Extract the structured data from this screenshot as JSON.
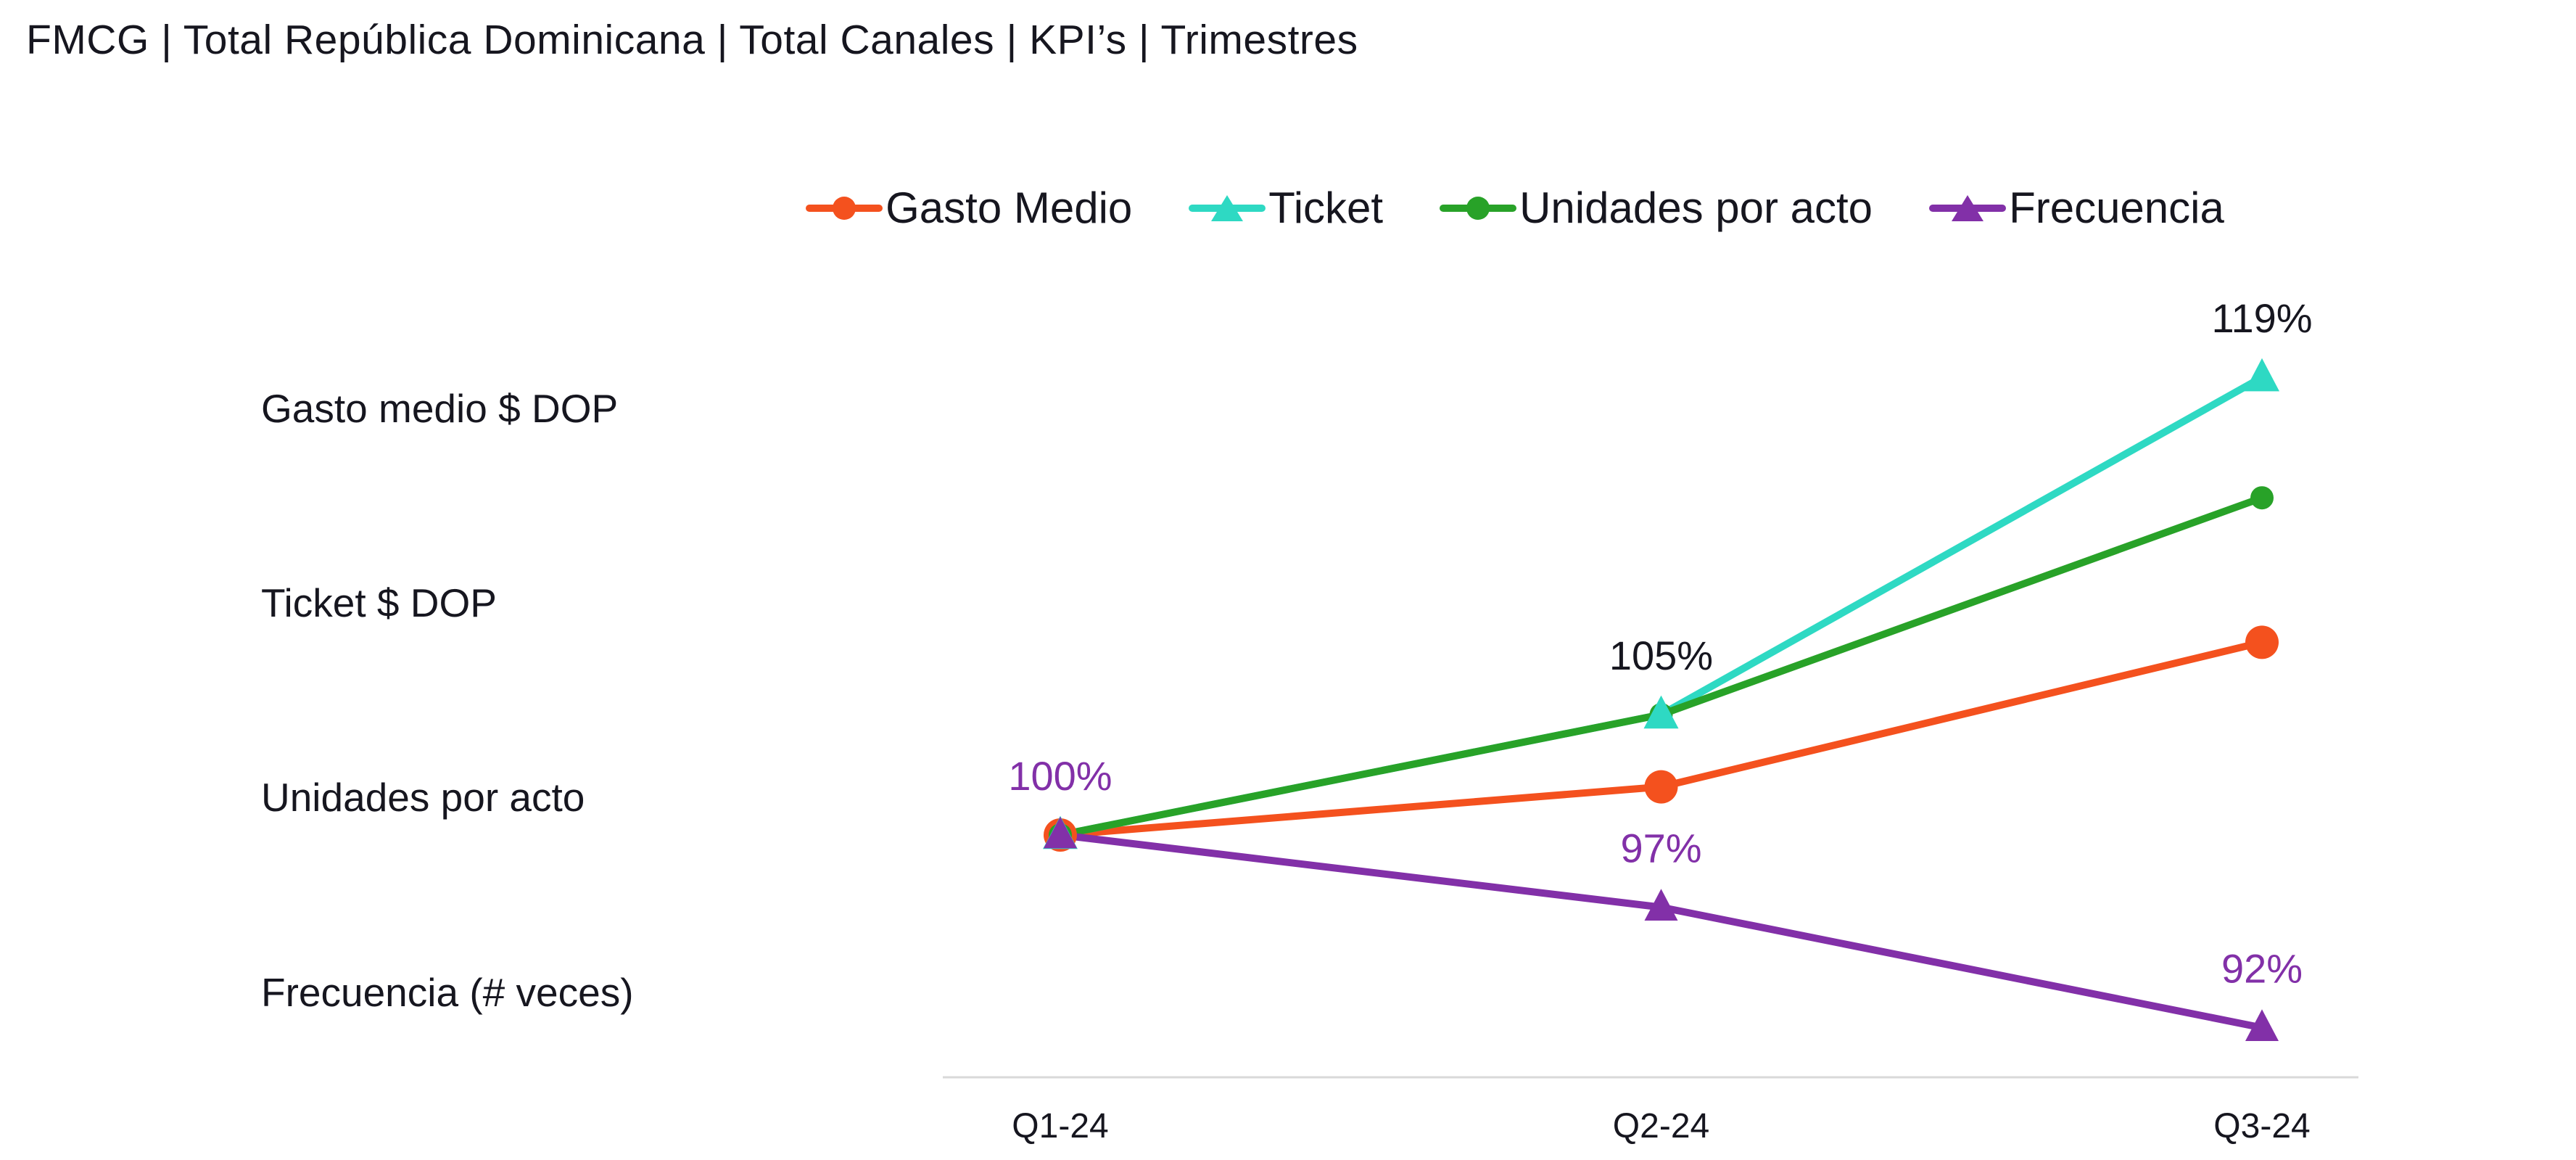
{
  "title": "FMCG | Total República Dominicana | Total Canales | KPI’s | Trimestres",
  "legend": [
    {
      "label": "Gasto Medio",
      "color": "#f4511e",
      "marker": "circle"
    },
    {
      "label": "Ticket",
      "color": "#2ed9c3",
      "marker": "triangle"
    },
    {
      "label": "Unidades por acto",
      "color": "#28a228",
      "marker": "circle"
    },
    {
      "label": "Frecuencia",
      "color": "#8230a8",
      "marker": "triangle"
    }
  ],
  "row_labels": [
    "Gasto medio $ DOP",
    "Ticket $ DOP",
    "Unidades por acto",
    "Frecuencia (# veces)"
  ],
  "colors": {
    "text": "#16161f",
    "axis": "#d9d9d9",
    "orange": "#f4511e",
    "teal": "#2ed9c3",
    "green": "#28a228",
    "purple": "#8230a8"
  },
  "chart_data": {
    "type": "line",
    "title": "FMCG | Total República Dominicana | Total Canales | KPI’s | Trimestres",
    "categories": [
      "Q1-24",
      "Q2-24",
      "Q3-24"
    ],
    "series": [
      {
        "name": "Gasto Medio",
        "color": "#f4511e",
        "marker": "circle",
        "values": [
          100,
          102,
          108
        ],
        "labels": [
          "",
          "",
          ""
        ],
        "label_color": "#16161f"
      },
      {
        "name": "Ticket",
        "color": "#2ed9c3",
        "marker": "triangle",
        "values": [
          100,
          105,
          119
        ],
        "labels": [
          "",
          "105%",
          "119%"
        ],
        "label_color": "#16161f"
      },
      {
        "name": "Unidades por acto",
        "color": "#28a228",
        "marker": "circle",
        "values": [
          100,
          105,
          114
        ],
        "labels": [
          "",
          "",
          ""
        ],
        "label_color": "#16161f"
      },
      {
        "name": "Frecuencia",
        "color": "#8230a8",
        "marker": "triangle",
        "values": [
          100,
          97,
          92
        ],
        "labels": [
          "100%",
          "97%",
          "92%"
        ],
        "label_color": "#8230a8"
      }
    ],
    "value_format": "percent-indexed-to-100",
    "ylim": [
      88,
      124
    ],
    "grid": false,
    "y_axis_visible": false,
    "legend_position": "top",
    "axis_color": "#d9d9d9"
  }
}
